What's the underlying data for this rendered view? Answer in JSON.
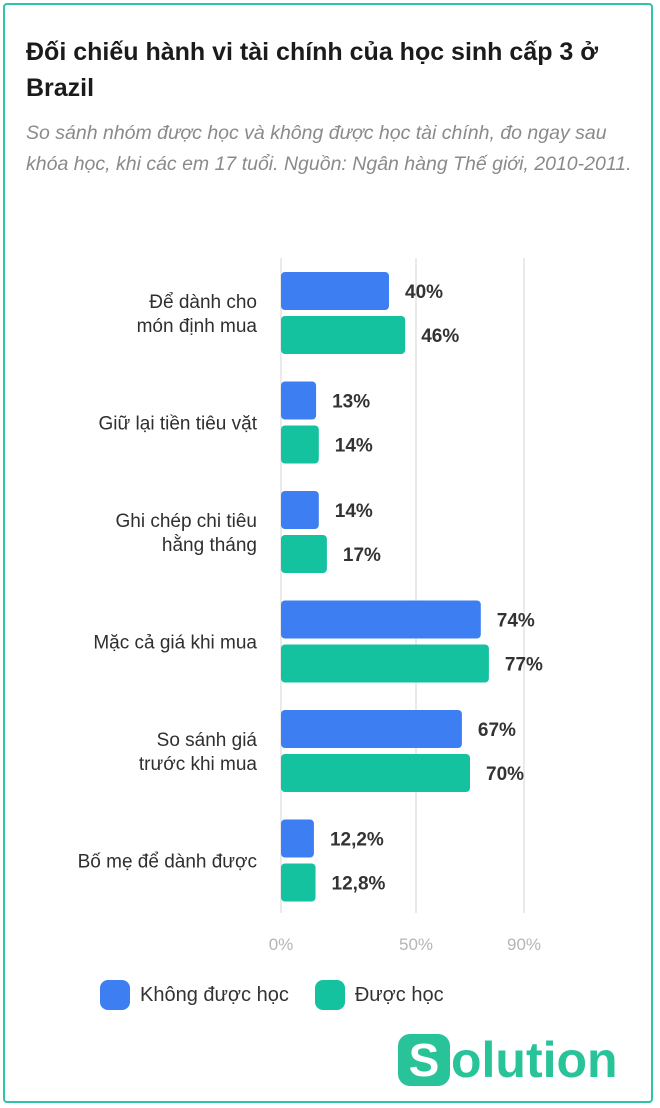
{
  "header": {
    "title": "Đối chiếu hành vi tài chính của học sinh cấp 3 ở Brazil",
    "subtitle": "So sánh nhóm được học và không được học tài chính, đo ngay sau khóa học, khi các em 17 tuổi. Nguồn: Ngân hàng Thế giới, 2010-2011."
  },
  "chart_data": {
    "type": "bar",
    "orientation": "horizontal",
    "categories": [
      [
        "Để dành cho",
        "món định mua"
      ],
      [
        "Giữ lại tiền tiêu vặt"
      ],
      [
        "Ghi chép chi tiêu",
        "hằng tháng"
      ],
      [
        "Mặc cả giá khi mua"
      ],
      [
        "So sánh giá",
        "trước khi mua"
      ],
      [
        "Bố mẹ để dành được"
      ]
    ],
    "series": [
      {
        "name": "Không được học",
        "color": "#3d7ef2",
        "values": [
          40,
          13,
          14,
          74,
          67,
          12.2
        ],
        "labels": [
          "40%",
          "13%",
          "14%",
          "74%",
          "67%",
          "12,2%"
        ]
      },
      {
        "name": "Được học",
        "color": "#14c2a0",
        "values": [
          46,
          14,
          17,
          77,
          70,
          12.8
        ],
        "labels": [
          "46%",
          "14%",
          "17%",
          "77%",
          "70%",
          "12,8%"
        ]
      }
    ],
    "x_ticks": [
      {
        "value": 0,
        "label": "0%"
      },
      {
        "value": 50,
        "label": "50%"
      },
      {
        "value": 90,
        "label": "90%"
      }
    ],
    "grid": true,
    "legend_position": "bottom-left"
  },
  "logo": {
    "letter": "S",
    "rest": "olution"
  }
}
